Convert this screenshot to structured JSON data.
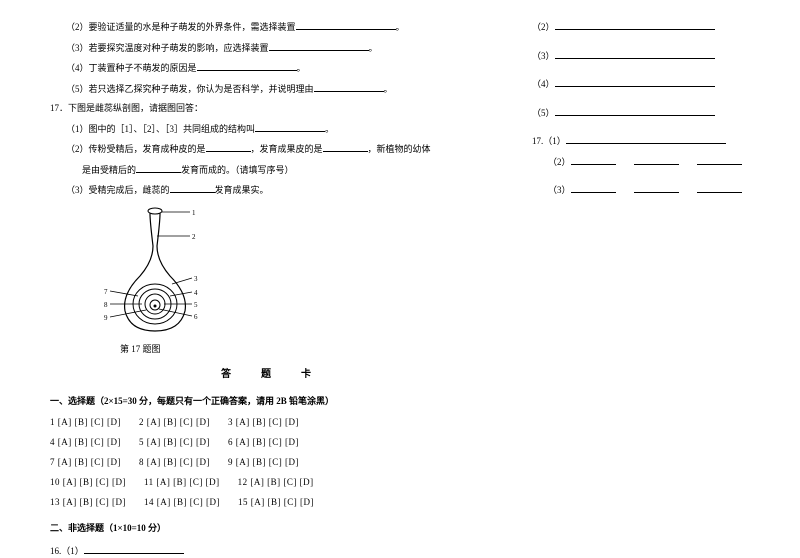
{
  "left": {
    "q2": "（2）要验证适量的水是种子萌发的外界条件，需选择装置",
    "q3": "（3）若要探究温度对种子萌发的影响，应选择装置",
    "q4": "（4）丁装置种子不萌发的原因是",
    "q5": "（5）若只选择乙探究种子萌发，你认为是否科学，并说明理由",
    "q17": "17．下图是雌蕊纵剖图，请据图回答：",
    "q17_1": "（1）图中的［1］、［2］、［3］共同组成的结构叫",
    "q17_2a": "（2）传粉受精后，发育成种皮的是",
    "q17_2b": "，发育成果皮的是",
    "q17_2c": "，新植物的幼体",
    "q17_2d": "是由受精后的",
    "q17_2e": "发育而成的。（请填写序号）",
    "q17_3a": "（3）受精完成后，雌蕊的",
    "q17_3b": "发育成果实。",
    "figure_caption": "第 17 题图",
    "answer_card": "答　题　卡",
    "mc_header": "一、选择题（2×15=30 分，每题只有一个正确答案，请用 2B 铅笔涂黑）",
    "mc_rows": [
      [
        1,
        2,
        3
      ],
      [
        4,
        5,
        6
      ],
      [
        7,
        8,
        9
      ],
      [
        10,
        11,
        12
      ],
      [
        13,
        14,
        15
      ]
    ],
    "nmc_header": "二、非选择题（1×10=10 分）",
    "q16": "16.（1）"
  },
  "right": {
    "items": [
      "（2）",
      "（3）",
      "（4）",
      "（5）"
    ],
    "q17": "17.（1）",
    "q17b": [
      "（2）",
      "（3）"
    ]
  },
  "style": {
    "font_size_pt": 9,
    "text_color": "#000000",
    "bg_color": "#ffffff"
  }
}
